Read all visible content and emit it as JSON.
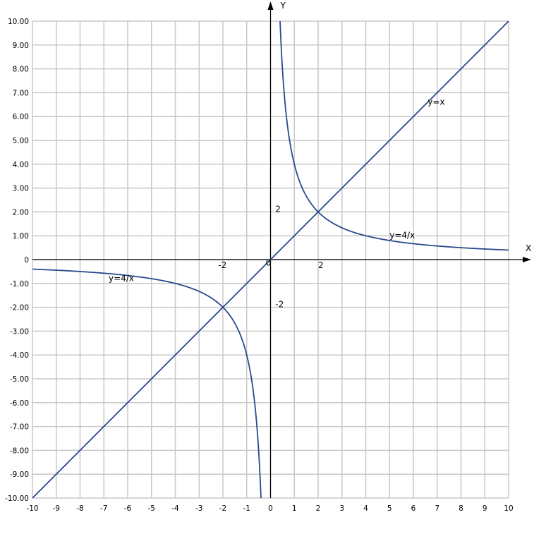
{
  "chart_data": {
    "type": "line",
    "title": "",
    "xlabel": "X",
    "ylabel": "Y",
    "xlim": [
      -10,
      10
    ],
    "ylim": [
      -10,
      10
    ],
    "grid": true,
    "x_ticks": [
      "-10",
      "-9",
      "-8",
      "-7",
      "-6",
      "-5",
      "-4",
      "-3",
      "-2",
      "-1",
      "0",
      "1",
      "2",
      "3",
      "4",
      "5",
      "6",
      "7",
      "8",
      "9",
      "10"
    ],
    "y_ticks": [
      "10.00",
      "9.00",
      "8.00",
      "7.00",
      "6.00",
      "5.00",
      "4.00",
      "3.00",
      "2.00",
      "1.00",
      "0",
      "-1.00",
      "-2.00",
      "-3.00",
      "-4.00",
      "-5.00",
      "-6.00",
      "-7.00",
      "-8.00",
      "-9.00",
      "-10.00"
    ],
    "series": [
      {
        "name": "y=x",
        "function": "x",
        "x": [
          -10,
          10
        ],
        "y": [
          -10,
          10
        ]
      },
      {
        "name": "y=4/x",
        "function": "4/x",
        "x": [
          0.4,
          0.5,
          1,
          2,
          4,
          5,
          10
        ],
        "y": [
          10,
          8,
          4,
          2,
          1,
          0.8,
          0.4
        ]
      },
      {
        "name": "y=4/x",
        "function": "4/x",
        "x": [
          -10,
          -5,
          -4,
          -2,
          -1,
          -0.5,
          -0.4
        ],
        "y": [
          -0.4,
          -0.8,
          -1,
          -2,
          -4,
          -8,
          -10
        ]
      }
    ],
    "annotations": [
      {
        "text": "y=x",
        "x": 6.6,
        "y": 6.5
      },
      {
        "text": "y=4/x",
        "x": 5,
        "y": 0.9
      },
      {
        "text": "y=4/x",
        "x": -6.8,
        "y": -0.9
      },
      {
        "text": "2",
        "x": 0.2,
        "y": 2
      },
      {
        "text": "-2",
        "x": 0.2,
        "y": -2
      },
      {
        "text": "-2",
        "x": -2.2,
        "y": -0.35
      },
      {
        "text": "2",
        "x": 2,
        "y": -0.35
      },
      {
        "text": "0",
        "x": -0.2,
        "y": -0.25
      }
    ],
    "colors": {
      "curve": "#2a4a8c",
      "grid": "#c8c8c8",
      "axis": "#000000"
    }
  }
}
